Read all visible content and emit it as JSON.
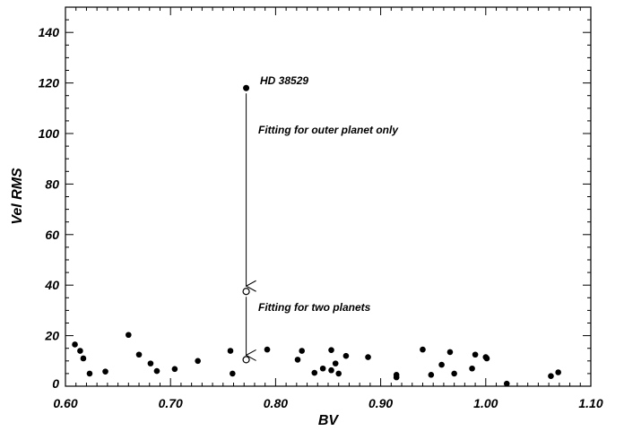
{
  "chart_data": {
    "type": "scatter",
    "title": "",
    "xlabel": "BV",
    "ylabel": "Vel RMS",
    "xlim": [
      0.6,
      1.1
    ],
    "ylim": [
      0,
      150
    ],
    "x_ticks": [
      "0.60",
      "0.70",
      "0.80",
      "0.90",
      "1.00",
      "1.10"
    ],
    "y_ticks": [
      "20",
      "40",
      "60",
      "80",
      "100",
      "120",
      "140"
    ],
    "y_tick_values": [
      20,
      40,
      60,
      80,
      100,
      120,
      140
    ],
    "x_tick_values": [
      0.6,
      0.7,
      0.8,
      0.9,
      1.0,
      1.1
    ],
    "grid": false,
    "points": [
      {
        "x": 0.609,
        "y": 16.5
      },
      {
        "x": 0.614,
        "y": 14.0
      },
      {
        "x": 0.617,
        "y": 11.0
      },
      {
        "x": 0.623,
        "y": 5.0
      },
      {
        "x": 0.638,
        "y": 5.8
      },
      {
        "x": 0.66,
        "y": 20.3
      },
      {
        "x": 0.67,
        "y": 12.5
      },
      {
        "x": 0.681,
        "y": 9.0
      },
      {
        "x": 0.687,
        "y": 6.0
      },
      {
        "x": 0.704,
        "y": 6.8
      },
      {
        "x": 0.726,
        "y": 10.0
      },
      {
        "x": 0.757,
        "y": 14.0
      },
      {
        "x": 0.759,
        "y": 5.0
      },
      {
        "x": 0.792,
        "y": 14.5
      },
      {
        "x": 0.821,
        "y": 10.5
      },
      {
        "x": 0.825,
        "y": 14.0
      },
      {
        "x": 0.837,
        "y": 5.3
      },
      {
        "x": 0.845,
        "y": 7.0
      },
      {
        "x": 0.853,
        "y": 14.3
      },
      {
        "x": 0.853,
        "y": 6.3
      },
      {
        "x": 0.857,
        "y": 9.0
      },
      {
        "x": 0.86,
        "y": 5.0
      },
      {
        "x": 0.867,
        "y": 12.0
      },
      {
        "x": 0.888,
        "y": 11.5
      },
      {
        "x": 0.915,
        "y": 4.5
      },
      {
        "x": 0.915,
        "y": 3.5
      },
      {
        "x": 0.94,
        "y": 14.5
      },
      {
        "x": 0.948,
        "y": 4.5
      },
      {
        "x": 0.958,
        "y": 8.5
      },
      {
        "x": 0.966,
        "y": 13.5
      },
      {
        "x": 0.97,
        "y": 5.0
      },
      {
        "x": 0.987,
        "y": 7.0
      },
      {
        "x": 0.99,
        "y": 12.5
      },
      {
        "x": 1.0,
        "y": 11.5
      },
      {
        "x": 1.001,
        "y": 11.0
      },
      {
        "x": 1.02,
        "y": 1.0
      },
      {
        "x": 1.062,
        "y": 4.0
      },
      {
        "x": 1.069,
        "y": 5.5
      }
    ],
    "highlight": {
      "x": 0.772,
      "outer_only": 118.0,
      "two_planets_a": 37.5,
      "two_planets_b": 10.5
    },
    "annotations": {
      "star": "HD 38529",
      "outer": "Fitting for outer planet only",
      "two": "Fitting for two planets"
    }
  }
}
